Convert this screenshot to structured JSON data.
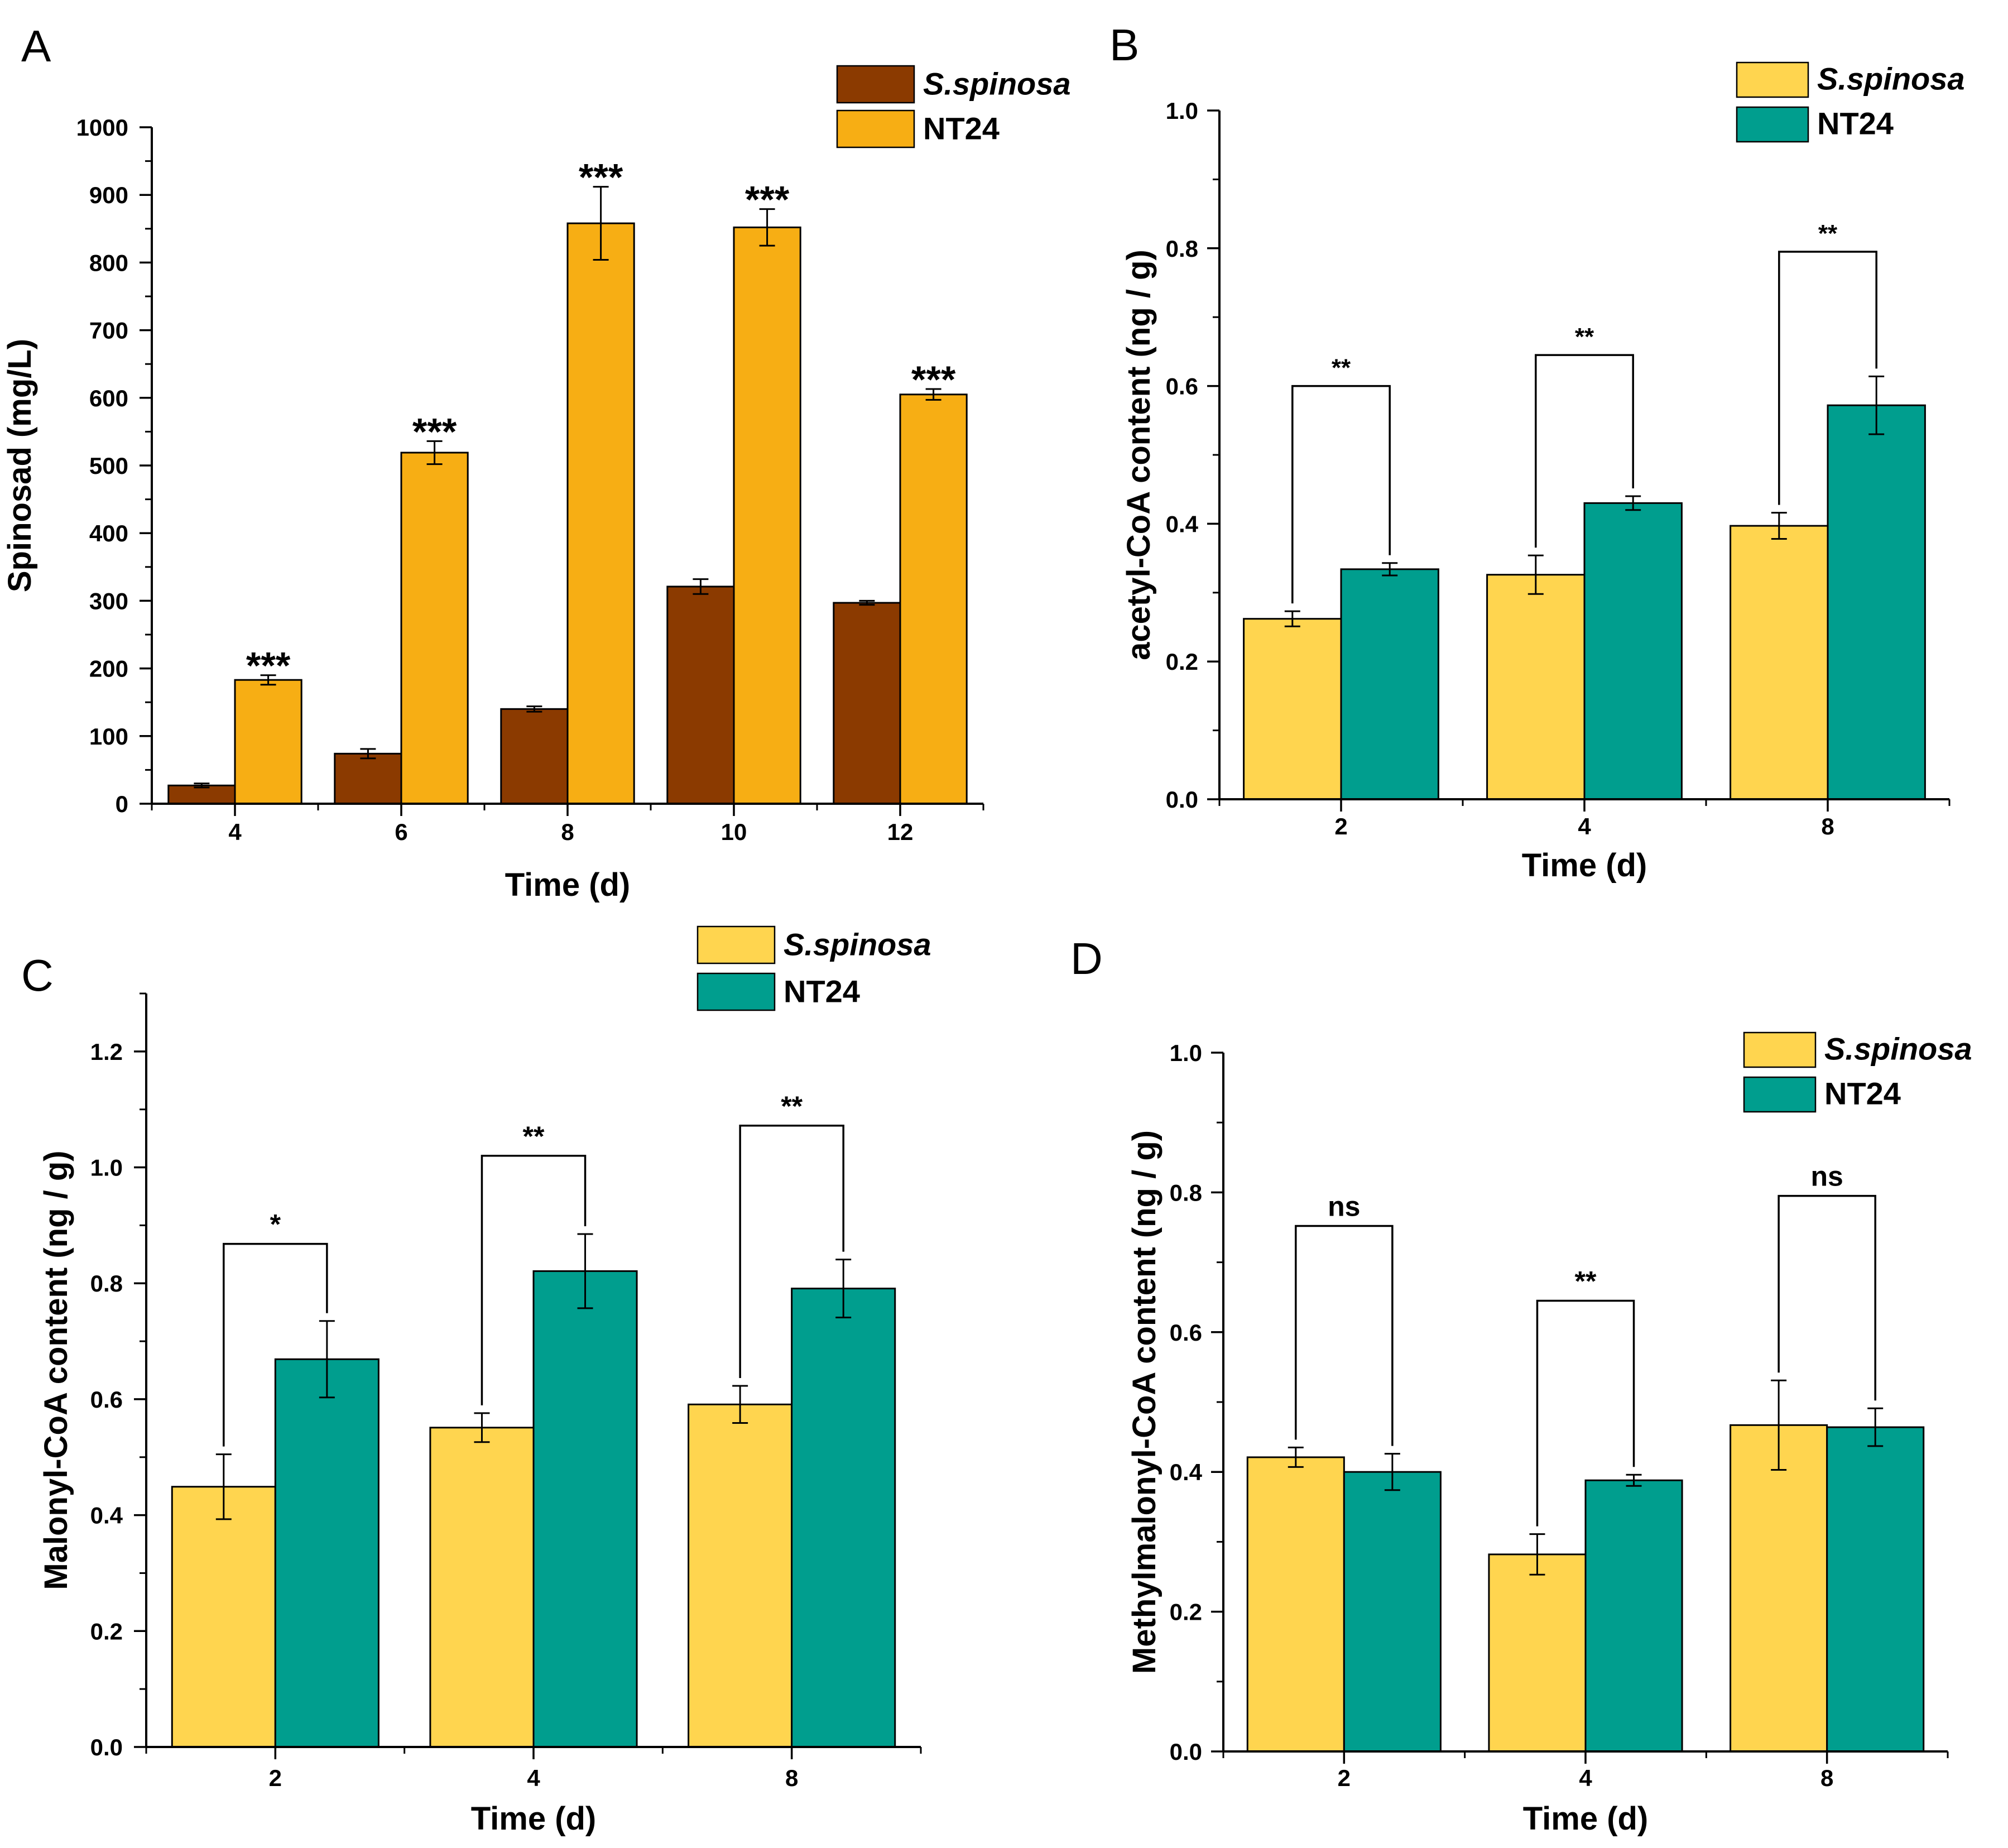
{
  "chart_data": [
    {
      "id": "A",
      "panel_label": "A",
      "type": "bar",
      "categories": [
        "4",
        "6",
        "8",
        "10",
        "12"
      ],
      "series": [
        {
          "name": "S.spinosa",
          "color": "#8B3A00",
          "values": [
            27,
            74,
            140,
            321,
            297
          ],
          "errors": [
            3,
            7,
            4,
            11,
            3
          ]
        },
        {
          "name": "NT24",
          "color": "#F7AE14",
          "values": [
            183,
            519,
            858,
            852,
            605
          ],
          "errors": [
            7,
            17,
            54,
            27,
            8
          ]
        }
      ],
      "significance": [
        {
          "category": 0,
          "label": "***"
        },
        {
          "category": 1,
          "label": "***"
        },
        {
          "category": 2,
          "label": "***"
        },
        {
          "category": 3,
          "label": "***"
        },
        {
          "category": 4,
          "label": "***"
        }
      ],
      "yticks": [
        "0",
        "100",
        "200",
        "300",
        "400",
        "500",
        "600",
        "700",
        "800",
        "900",
        "1000"
      ],
      "ylim": [
        0,
        1000
      ],
      "xlabel": "Time (d)",
      "ylabel": "Spinosad (mg/L)"
    },
    {
      "id": "B",
      "panel_label": "B",
      "type": "bar",
      "categories": [
        "2",
        "4",
        "8"
      ],
      "series": [
        {
          "name": "S.spinosa",
          "color": "#FFD54F",
          "values": [
            0.262,
            0.326,
            0.397
          ],
          "errors": [
            0.011,
            0.028,
            0.019
          ]
        },
        {
          "name": "NT24",
          "color": "#009E8E",
          "values": [
            0.334,
            0.43,
            0.572
          ],
          "errors": [
            0.009,
            0.01,
            0.042
          ]
        }
      ],
      "significance": [
        {
          "category": 0,
          "label": "**",
          "bracket": 0.6
        },
        {
          "category": 1,
          "label": "**",
          "bracket": 0.645
        },
        {
          "category": 2,
          "label": "**",
          "bracket": 0.795
        }
      ],
      "yticks": [
        "0.0",
        "0.2",
        "0.4",
        "0.6",
        "0.8",
        "1.0"
      ],
      "ylim": [
        0,
        1.0
      ],
      "xlabel": "Time (d)",
      "ylabel": "acetyl-CoA content (ng / g)"
    },
    {
      "id": "C",
      "panel_label": "C",
      "type": "bar",
      "categories": [
        "2",
        "4",
        "8"
      ],
      "series": [
        {
          "name": "S.spinosa",
          "color": "#FFD54F",
          "values": [
            0.449,
            0.551,
            0.591
          ],
          "errors": [
            0.056,
            0.025,
            0.032
          ]
        },
        {
          "name": "NT24",
          "color": "#009E8E",
          "values": [
            0.669,
            0.821,
            0.791
          ],
          "errors": [
            0.066,
            0.064,
            0.05
          ]
        }
      ],
      "significance": [
        {
          "category": 0,
          "label": "*",
          "bracket": 0.868
        },
        {
          "category": 1,
          "label": "**",
          "bracket": 1.02
        },
        {
          "category": 2,
          "label": "**",
          "bracket": 1.072
        }
      ],
      "yticks": [
        "0.0",
        "0.2",
        "0.4",
        "0.6",
        "0.8",
        "1.0",
        "1.2"
      ],
      "ylim": [
        0,
        1.3
      ],
      "xlabel": "Time (d)",
      "ylabel": "Malonyl-CoA content (ng / g)"
    },
    {
      "id": "D",
      "panel_label": "D",
      "type": "bar",
      "categories": [
        "2",
        "4",
        "8"
      ],
      "series": [
        {
          "name": "S.spinosa",
          "color": "#FFD54F",
          "values": [
            0.421,
            0.282,
            0.467
          ],
          "errors": [
            0.014,
            0.029,
            0.064
          ]
        },
        {
          "name": "NT24",
          "color": "#009E8E",
          "values": [
            0.4,
            0.388,
            0.464
          ],
          "errors": [
            0.026,
            0.008,
            0.027
          ]
        }
      ],
      "significance": [
        {
          "category": 0,
          "label": "ns",
          "bracket": 0.752
        },
        {
          "category": 1,
          "label": "**",
          "bracket": 0.645
        },
        {
          "category": 2,
          "label": "ns",
          "bracket": 0.795
        }
      ],
      "yticks": [
        "0.0",
        "0.2",
        "0.4",
        "0.6",
        "0.8",
        "1.0"
      ],
      "ylim": [
        0,
        1.0
      ],
      "xlabel": "Time (d)",
      "ylabel": "Methylmalonyl-CoA content (ng / g)"
    }
  ]
}
